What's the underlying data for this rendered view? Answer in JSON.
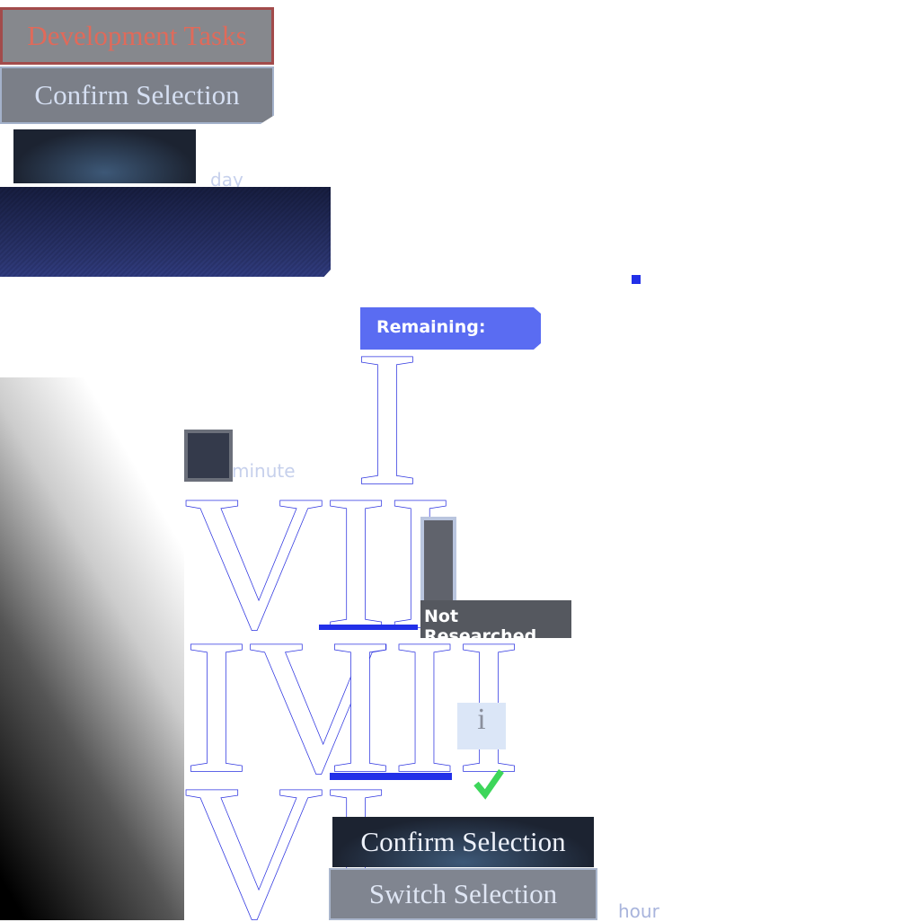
{
  "header": {
    "title": "Development Tasks",
    "confirm": "Confirm Selection"
  },
  "time_units": {
    "day": "day",
    "minute": "minute",
    "hour": "hour"
  },
  "remaining": "Remaining:",
  "numerals": [
    "I",
    "VII",
    "IV",
    "III",
    "VI"
  ],
  "status": "Not Researched",
  "actions": {
    "confirm": "Confirm Selection",
    "switch": "Switch Selection"
  }
}
